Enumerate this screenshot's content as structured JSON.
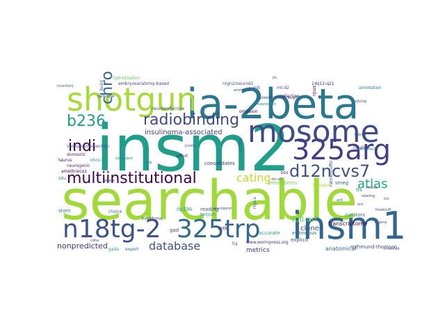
{
  "cloud": {
    "words": [
      {
        "text": "searchable",
        "color": "#a0da39"
      },
      {
        "text": "insm2",
        "color": "#1f9e89"
      },
      {
        "text": "ia-2beta",
        "color": "#2a788e"
      },
      {
        "text": "mosome",
        "color": "#3e4a89"
      },
      {
        "text": "shotgun",
        "color": "#a5db36"
      },
      {
        "text": "insm1",
        "color": "#31688e"
      },
      {
        "text": "325arg",
        "color": "#433e85"
      },
      {
        "text": "n18tg-2",
        "color": "#3b528b"
      },
      {
        "text": "325trp",
        "color": "#31688e"
      },
      {
        "text": "d12ncvs7",
        "color": "#3b528b"
      },
      {
        "text": "multiinstitutional",
        "color": "#440154"
      },
      {
        "text": "radiobinding",
        "color": "#3e4989"
      },
      {
        "text": "chro",
        "color": "#31688e"
      },
      {
        "text": "b236",
        "color": "#1f9e89"
      },
      {
        "text": "indi",
        "color": "#440154"
      },
      {
        "text": "atlas",
        "color": "#20a386"
      },
      {
        "text": "cating",
        "color": "#bddf26"
      },
      {
        "text": "database",
        "color": "#3b528b"
      },
      {
        "text": "insulinoma-associated",
        "color": "#443a83"
      },
      {
        "text": "nonpredicted",
        "color": "#46327e"
      },
      {
        "text": "full-orf",
        "color": "#5ec962"
      },
      {
        "text": "clones",
        "color": "#3b528b"
      },
      {
        "text": "transcriptome",
        "color": "#440154"
      },
      {
        "text": "anatomical",
        "color": "#31688e"
      },
      {
        "text": "metrics",
        "color": "#46327e"
      },
      {
        "text": "accurate",
        "color": "#1f9e89"
      },
      {
        "text": "erroneous",
        "color": "#31688e"
      },
      {
        "text": "explicit",
        "color": "#3b528b"
      },
      {
        "text": "consolidates",
        "color": "#46327e"
      },
      {
        "text": "prediabetes",
        "color": "#7ad151"
      },
      {
        "text": "rothmund-thomson",
        "color": "#3e4989"
      },
      {
        "text": "curators",
        "color": "#2a788e"
      },
      {
        "text": "reading",
        "color": "#3b528b"
      },
      {
        "text": "nrgn2/neurod1",
        "color": "#3e4989"
      },
      {
        "text": "mt-d2",
        "color": "#3b528b"
      },
      {
        "text": "14q12-q21",
        "color": "#472d7b"
      },
      {
        "text": "annotation",
        "color": "#2a788e"
      },
      {
        "text": "embryosanatomy-based",
        "color": "#443a83"
      },
      {
        "text": "hybridization",
        "color": "#5ec962"
      },
      {
        "text": "omission",
        "color": "#440154"
      },
      {
        "text": "collection",
        "color": "#481f70"
      },
      {
        "text": "assertioncellcaught",
        "color": "#3e4989"
      },
      {
        "text": "neuroendocrine",
        "color": "#414487"
      },
      {
        "text": "immunointervention",
        "color": "#3b528b"
      },
      {
        "text": "domestic",
        "color": "#482878"
      },
      {
        "text": "ohcs-ls",
        "color": "#21918c"
      },
      {
        "text": "taurus",
        "color": "#440154"
      },
      {
        "text": "neurogenic",
        "color": "#482878"
      },
      {
        "text": "situ",
        "color": "#2a788e"
      },
      {
        "text": "stom",
        "color": "#2a788e"
      },
      {
        "text": "genome",
        "color": "#3e4989"
      },
      {
        "text": "choice",
        "color": "#31688e"
      },
      {
        "text": "kingdoms",
        "color": "#414487"
      },
      {
        "text": "effort",
        "color": "#482878"
      },
      {
        "text": "expert",
        "color": "#31688e"
      },
      {
        "text": "gada",
        "color": "#1f9e89"
      },
      {
        "text": "belgian",
        "color": "#20a386"
      },
      {
        "text": "zntk",
        "color": "#440154"
      },
      {
        "text": "znt8a",
        "color": "#31688e"
      },
      {
        "text": "identified",
        "color": "#21918c"
      },
      {
        "text": "smeg",
        "color": "#31688e"
      },
      {
        "text": "biologist",
        "color": "#a5db36"
      },
      {
        "text": "rigs-a",
        "color": "#3b528b"
      },
      {
        "text": "bos",
        "color": "#472d7b"
      },
      {
        "text": "tfs",
        "color": "#2a788e"
      },
      {
        "text": "created",
        "color": "#46327e"
      },
      {
        "text": "rahnel-cuffin",
        "color": "#3e4989"
      },
      {
        "text": "rpus",
        "color": "#471063"
      },
      {
        "text": "www.wormpress.org",
        "color": "#46327e"
      },
      {
        "text": "gad",
        "color": "#3b528b"
      },
      {
        "text": "ifp236",
        "color": "#1f9e89"
      },
      {
        "text": "build",
        "color": "#3b528b"
      },
      {
        "text": "mlt",
        "color": "#3b528b"
      },
      {
        "text": "jts",
        "color": "#3b528b"
      },
      {
        "text": "relying",
        "color": "#3b528b"
      },
      {
        "text": "expanded",
        "color": "#21918c"
      },
      {
        "text": "jointly",
        "color": "#3b528b"
      },
      {
        "text": "emmission",
        "color": "#3b528b"
      },
      {
        "text": "expression",
        "color": "#21918c"
      },
      {
        "text": "amettr/ecq1",
        "color": "#440154"
      },
      {
        "text": "fuj",
        "color": "#3b528b"
      },
      {
        "text": "kidney",
        "color": "#3b528b"
      },
      {
        "text": "ach",
        "color": "#3b528b"
      },
      {
        "text": "foodstuff",
        "color": "#3b528b"
      },
      {
        "text": "ocx",
        "color": "#3b528b"
      },
      {
        "text": "dor-a3",
        "color": "#3b528b"
      },
      {
        "text": "neurogenin",
        "color": "#3b528b"
      },
      {
        "text": "mouse",
        "color": "#3b528b"
      },
      {
        "text": "relating",
        "color": "#3b528b"
      },
      {
        "text": "phase",
        "color": "#3b528b"
      },
      {
        "text": "tcs",
        "color": "#3b528b"
      },
      {
        "text": "inventory",
        "color": "#3b528b"
      },
      {
        "text": "cdna",
        "color": "#3b528b"
      },
      {
        "text": "inherited",
        "color": "#3b528b"
      },
      {
        "text": "gene",
        "color": "#3b528b"
      },
      {
        "text": "zmd",
        "color": "#3b528b"
      },
      {
        "text": "cds",
        "color": "#3b528b"
      }
    ]
  }
}
